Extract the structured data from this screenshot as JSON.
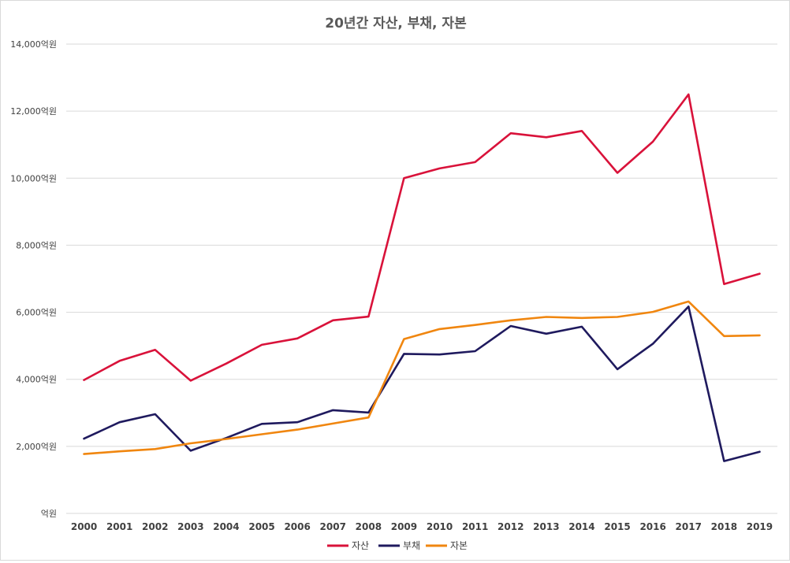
{
  "chart_data": {
    "type": "line",
    "title": "20년간 자산, 부채, 자본",
    "categories": [
      "2000",
      "2001",
      "2002",
      "2003",
      "2004",
      "2005",
      "2006",
      "2007",
      "2008",
      "2009",
      "2010",
      "2011",
      "2012",
      "2013",
      "2014",
      "2015",
      "2016",
      "2017",
      "2018",
      "2019"
    ],
    "ylim": [
      0,
      14000
    ],
    "yticks": [
      0,
      2000,
      4000,
      6000,
      8000,
      10000,
      12000,
      14000
    ],
    "ytick_labels": [
      "억원",
      "2,000억원",
      "4,000억원",
      "6,000억원",
      "8,000억원",
      "10,000억원",
      "12,000억원",
      "14,000억원"
    ],
    "grid": true,
    "legend_position": "bottom",
    "series": [
      {
        "name": "자산",
        "color": "#d9123a",
        "values": [
          3980,
          4550,
          4880,
          3960,
          4470,
          5030,
          5220,
          5760,
          5870,
          10000,
          10290,
          10480,
          11340,
          11220,
          11410,
          10160,
          11090,
          12500,
          6840,
          7150
        ]
      },
      {
        "name": "부채",
        "color": "#1f1a5e",
        "values": [
          2230,
          2720,
          2960,
          1870,
          2250,
          2670,
          2720,
          3080,
          3010,
          4760,
          4740,
          4840,
          5590,
          5360,
          5570,
          4300,
          5060,
          6170,
          1560,
          1840
        ]
      },
      {
        "name": "자본",
        "color": "#f0860f",
        "values": [
          1770,
          1850,
          1920,
          2090,
          2220,
          2360,
          2500,
          2680,
          2860,
          5200,
          5500,
          5620,
          5760,
          5860,
          5830,
          5860,
          6010,
          6320,
          5290,
          5310
        ]
      }
    ]
  }
}
